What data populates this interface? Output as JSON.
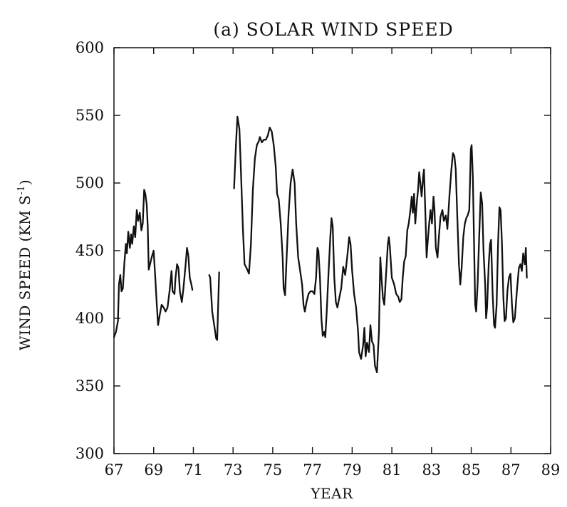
{
  "chart_data": {
    "type": "line",
    "title": "(a) SOLAR WIND SPEED",
    "xlabel": "YEAR",
    "ylabel": "WIND SPEED (KM S",
    "ylabel_sup": "-1",
    "ylabel_close": ")",
    "xlim": [
      67,
      89
    ],
    "ylim": [
      300,
      600
    ],
    "x_ticks": [
      67,
      69,
      71,
      73,
      75,
      77,
      79,
      81,
      83,
      85,
      87,
      89
    ],
    "x_tick_labels": [
      "67",
      "69",
      "71",
      "73",
      "75",
      "77",
      "79",
      "81",
      "83",
      "85",
      "87",
      "89"
    ],
    "y_ticks": [
      300,
      350,
      400,
      450,
      500,
      550,
      600
    ],
    "y_tick_labels": [
      "300",
      "350",
      "400",
      "450",
      "500",
      "550",
      "600"
    ],
    "grid": false,
    "colors": {
      "line": "#111111",
      "axes": "#111111"
    },
    "series": [
      {
        "segments": [
          [
            [
              67.0,
              386
            ],
            [
              67.1,
              390
            ],
            [
              67.2,
              398
            ],
            [
              67.25,
              425
            ],
            [
              67.32,
              432
            ],
            [
              67.38,
              420
            ],
            [
              67.45,
              422
            ],
            [
              67.52,
              440
            ],
            [
              67.6,
              455
            ],
            [
              67.65,
              448
            ],
            [
              67.72,
              464
            ],
            [
              67.8,
              452
            ],
            [
              67.86,
              462
            ],
            [
              67.92,
              455
            ],
            [
              68.0,
              468
            ],
            [
              68.07,
              460
            ],
            [
              68.15,
              480
            ],
            [
              68.22,
              472
            ],
            [
              68.3,
              478
            ],
            [
              68.38,
              465
            ],
            [
              68.45,
              470
            ],
            [
              68.52,
              495
            ],
            [
              68.58,
              492
            ],
            [
              68.65,
              484
            ],
            [
              68.7,
              468
            ],
            [
              68.75,
              436
            ],
            [
              68.82,
              440
            ],
            [
              68.9,
              445
            ],
            [
              69.0,
              450
            ],
            [
              69.08,
              430
            ],
            [
              69.15,
              412
            ],
            [
              69.22,
              395
            ],
            [
              69.3,
              402
            ],
            [
              69.4,
              410
            ],
            [
              69.5,
              408
            ],
            [
              69.6,
              405
            ],
            [
              69.7,
              408
            ],
            [
              69.8,
              420
            ],
            [
              69.9,
              435
            ],
            [
              69.95,
              420
            ],
            [
              70.05,
              418
            ],
            [
              70.1,
              430
            ],
            [
              70.18,
              440
            ],
            [
              70.25,
              437
            ],
            [
              70.32,
              420
            ],
            [
              70.42,
              412
            ],
            [
              70.5,
              422
            ],
            [
              70.6,
              438
            ],
            [
              70.68,
              452
            ],
            [
              70.75,
              446
            ],
            [
              70.82,
              430
            ],
            [
              70.9,
              425
            ],
            [
              70.95,
              421
            ]
          ],
          [
            [
              71.8,
              432
            ],
            [
              71.85,
              430
            ],
            [
              71.95,
              405
            ],
            [
              72.05,
              395
            ],
            [
              72.15,
              385
            ],
            [
              72.2,
              384
            ],
            [
              72.25,
              410
            ],
            [
              72.3,
              434
            ]
          ],
          [
            [
              73.05,
              496
            ],
            [
              73.15,
              530
            ],
            [
              73.22,
              549
            ],
            [
              73.32,
              540
            ],
            [
              73.4,
              508
            ],
            [
              73.5,
              465
            ],
            [
              73.58,
              440
            ],
            [
              73.65,
              438
            ],
            [
              73.72,
              436
            ],
            [
              73.8,
              433
            ],
            [
              73.9,
              455
            ],
            [
              74.0,
              495
            ],
            [
              74.1,
              518
            ],
            [
              74.2,
              528
            ],
            [
              74.3,
              531
            ],
            [
              74.35,
              534
            ],
            [
              74.45,
              530
            ],
            [
              74.55,
              532
            ],
            [
              74.65,
              532
            ],
            [
              74.75,
              535
            ],
            [
              74.85,
              541
            ],
            [
              74.95,
              538
            ],
            [
              75.05,
              528
            ],
            [
              75.15,
              512
            ],
            [
              75.22,
              492
            ],
            [
              75.3,
              488
            ],
            [
              75.4,
              470
            ],
            [
              75.5,
              445
            ],
            [
              75.55,
              422
            ],
            [
              75.62,
              417
            ],
            [
              75.7,
              445
            ],
            [
              75.8,
              478
            ],
            [
              75.9,
              500
            ],
            [
              76.0,
              510
            ],
            [
              76.1,
              500
            ],
            [
              76.18,
              470
            ],
            [
              76.28,
              445
            ],
            [
              76.38,
              435
            ],
            [
              76.48,
              425
            ],
            [
              76.55,
              410
            ],
            [
              76.62,
              405
            ],
            [
              76.7,
              412
            ],
            [
              76.8,
              418
            ],
            [
              76.9,
              420
            ],
            [
              77.0,
              420
            ],
            [
              77.1,
              418
            ],
            [
              77.18,
              430
            ],
            [
              77.25,
              452
            ],
            [
              77.3,
              450
            ],
            [
              77.38,
              430
            ],
            [
              77.45,
              400
            ],
            [
              77.52,
              387
            ],
            [
              77.6,
              390
            ],
            [
              77.65,
              386
            ],
            [
              77.72,
              405
            ],
            [
              77.8,
              430
            ],
            [
              77.9,
              460
            ],
            [
              77.96,
              474
            ],
            [
              78.02,
              468
            ],
            [
              78.1,
              430
            ],
            [
              78.18,
              412
            ],
            [
              78.26,
              408
            ],
            [
              78.35,
              415
            ],
            [
              78.45,
              422
            ],
            [
              78.55,
              438
            ],
            [
              78.65,
              432
            ],
            [
              78.75,
              445
            ],
            [
              78.85,
              460
            ],
            [
              78.92,
              455
            ],
            [
              79.0,
              435
            ],
            [
              79.1,
              418
            ],
            [
              79.2,
              408
            ],
            [
              79.3,
              390
            ],
            [
              79.35,
              375
            ],
            [
              79.45,
              370
            ],
            [
              79.55,
              380
            ],
            [
              79.62,
              393
            ],
            [
              79.68,
              372
            ],
            [
              79.75,
              382
            ],
            [
              79.85,
              375
            ],
            [
              79.92,
              395
            ],
            [
              80.0,
              383
            ],
            [
              80.08,
              380
            ],
            [
              80.15,
              365
            ],
            [
              80.25,
              360
            ],
            [
              80.35,
              390
            ],
            [
              80.42,
              445
            ],
            [
              80.48,
              430
            ],
            [
              80.55,
              415
            ],
            [
              80.62,
              410
            ],
            [
              80.7,
              430
            ],
            [
              80.8,
              455
            ],
            [
              80.85,
              460
            ],
            [
              80.9,
              453
            ],
            [
              81.0,
              430
            ],
            [
              81.12,
              425
            ],
            [
              81.22,
              418
            ],
            [
              81.32,
              416
            ],
            [
              81.4,
              412
            ],
            [
              81.48,
              414
            ],
            [
              81.55,
              430
            ],
            [
              81.62,
              442
            ],
            [
              81.7,
              446
            ],
            [
              81.78,
              465
            ],
            [
              81.85,
              470
            ],
            [
              81.9,
              476
            ],
            [
              81.95,
              482
            ],
            [
              82.0,
              490
            ],
            [
              82.06,
              478
            ],
            [
              82.12,
              492
            ],
            [
              82.18,
              470
            ],
            [
              82.25,
              484
            ],
            [
              82.32,
              495
            ],
            [
              82.38,
              508
            ],
            [
              82.45,
              498
            ],
            [
              82.5,
              490
            ],
            [
              82.58,
              505
            ],
            [
              82.62,
              510
            ],
            [
              82.7,
              472
            ],
            [
              82.75,
              445
            ],
            [
              82.8,
              455
            ],
            [
              82.88,
              470
            ],
            [
              82.95,
              480
            ],
            [
              83.02,
              470
            ],
            [
              83.1,
              490
            ],
            [
              83.15,
              480
            ],
            [
              83.22,
              452
            ],
            [
              83.3,
              445
            ],
            [
              83.38,
              462
            ],
            [
              83.45,
              475
            ],
            [
              83.55,
              480
            ],
            [
              83.62,
              472
            ],
            [
              83.72,
              476
            ],
            [
              83.8,
              466
            ],
            [
              83.9,
              490
            ],
            [
              84.0,
              510
            ],
            [
              84.08,
              522
            ],
            [
              84.15,
              520
            ],
            [
              84.22,
              510
            ],
            [
              84.3,
              475
            ],
            [
              84.38,
              440
            ],
            [
              84.45,
              425
            ],
            [
              84.52,
              438
            ],
            [
              84.6,
              460
            ],
            [
              84.68,
              470
            ],
            [
              84.75,
              474
            ],
            [
              84.82,
              476
            ],
            [
              84.9,
              480
            ],
            [
              84.98,
              525
            ],
            [
              85.02,
              528
            ],
            [
              85.08,
              505
            ],
            [
              85.15,
              450
            ],
            [
              85.2,
              410
            ],
            [
              85.25,
              405
            ],
            [
              85.32,
              425
            ],
            [
              85.4,
              460
            ],
            [
              85.48,
              493
            ],
            [
              85.55,
              485
            ],
            [
              85.62,
              450
            ],
            [
              85.7,
              425
            ],
            [
              85.75,
              400
            ],
            [
              85.8,
              408
            ],
            [
              85.88,
              440
            ],
            [
              85.95,
              455
            ],
            [
              86.0,
              458
            ],
            [
              86.08,
              418
            ],
            [
              86.15,
              395
            ],
            [
              86.2,
              393
            ],
            [
              86.28,
              410
            ],
            [
              86.35,
              455
            ],
            [
              86.42,
              482
            ],
            [
              86.48,
              480
            ],
            [
              86.55,
              455
            ],
            [
              86.62,
              415
            ],
            [
              86.68,
              398
            ],
            [
              86.75,
              400
            ],
            [
              86.82,
              420
            ],
            [
              86.9,
              430
            ],
            [
              86.98,
              433
            ],
            [
              87.05,
              410
            ],
            [
              87.12,
              397
            ],
            [
              87.2,
              400
            ],
            [
              87.3,
              420
            ],
            [
              87.4,
              437
            ],
            [
              87.48,
              440
            ],
            [
              87.55,
              435
            ],
            [
              87.62,
              448
            ],
            [
              87.7,
              440
            ],
            [
              87.75,
              452
            ],
            [
              87.8,
              430
            ]
          ]
        ]
      }
    ]
  }
}
